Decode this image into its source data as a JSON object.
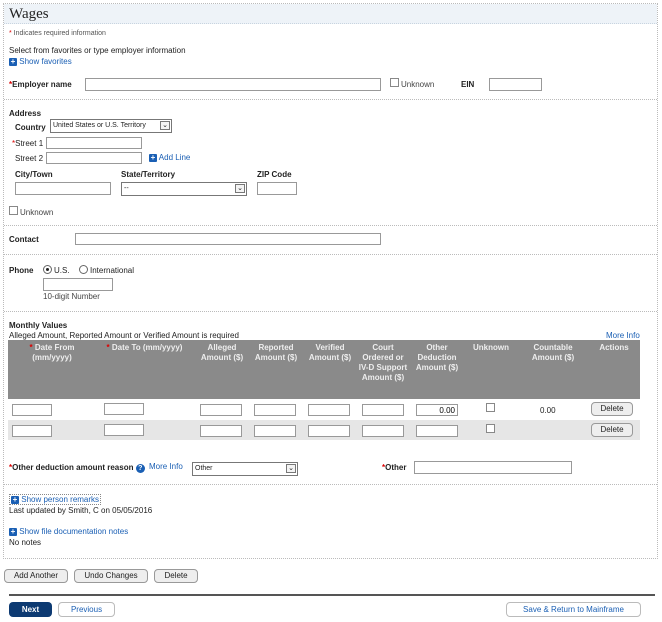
{
  "title": "Wages",
  "required_note": "Indicates required information",
  "favorites": {
    "intro": "Select from favorites or type employer information",
    "link": "Show favorites"
  },
  "employer": {
    "label": "Employer name",
    "unknown": "Unknown",
    "ein_label": "EIN"
  },
  "address": {
    "heading": "Address",
    "country_label": "Country",
    "country_value": "United States or U.S. Territory",
    "street1": "Street 1",
    "street2": "Street 2",
    "add_line": "Add Line",
    "city": "City/Town",
    "state": "State/Territory",
    "state_value": "--",
    "zip": "ZIP Code",
    "unknown": "Unknown"
  },
  "contact": {
    "label": "Contact"
  },
  "phone": {
    "label": "Phone",
    "us": "U.S.",
    "intl": "International",
    "hint": "10-digit Number"
  },
  "monthly": {
    "heading": "Monthly Values",
    "note": "Alleged Amount, Reported Amount or Verified Amount is required",
    "more_info": "More Info",
    "columns": [
      "Date From (mm/yyyy)",
      "Date To (mm/yyyy)",
      "Alleged Amount ($)",
      "Reported Amount ($)",
      "Verified Amount ($)",
      "Court Ordered or IV-D Support Amount ($)",
      "Other Deduction Amount ($)",
      "Unknown",
      "Countable Amount ($)",
      "Actions"
    ],
    "rows": [
      {
        "other_deduction": "0.00",
        "countable": "0.00",
        "action": "Delete"
      },
      {
        "other_deduction": "",
        "countable": "",
        "action": "Delete"
      }
    ]
  },
  "deduction": {
    "label": "Other deduction amount reason",
    "more_info": "More Info",
    "value": "Other",
    "other_label": "Other"
  },
  "remarks": {
    "link": "Show person remarks",
    "updated": "Last updated by Smith, C on 05/05/2016"
  },
  "notes": {
    "link": "Show file documentation notes",
    "text": "No notes"
  },
  "actions": {
    "add_another": "Add Another",
    "undo": "Undo Changes",
    "delete": "Delete"
  },
  "nav": {
    "next": "Next",
    "previous": "Previous",
    "save_return": "Save & Return to Mainframe"
  }
}
